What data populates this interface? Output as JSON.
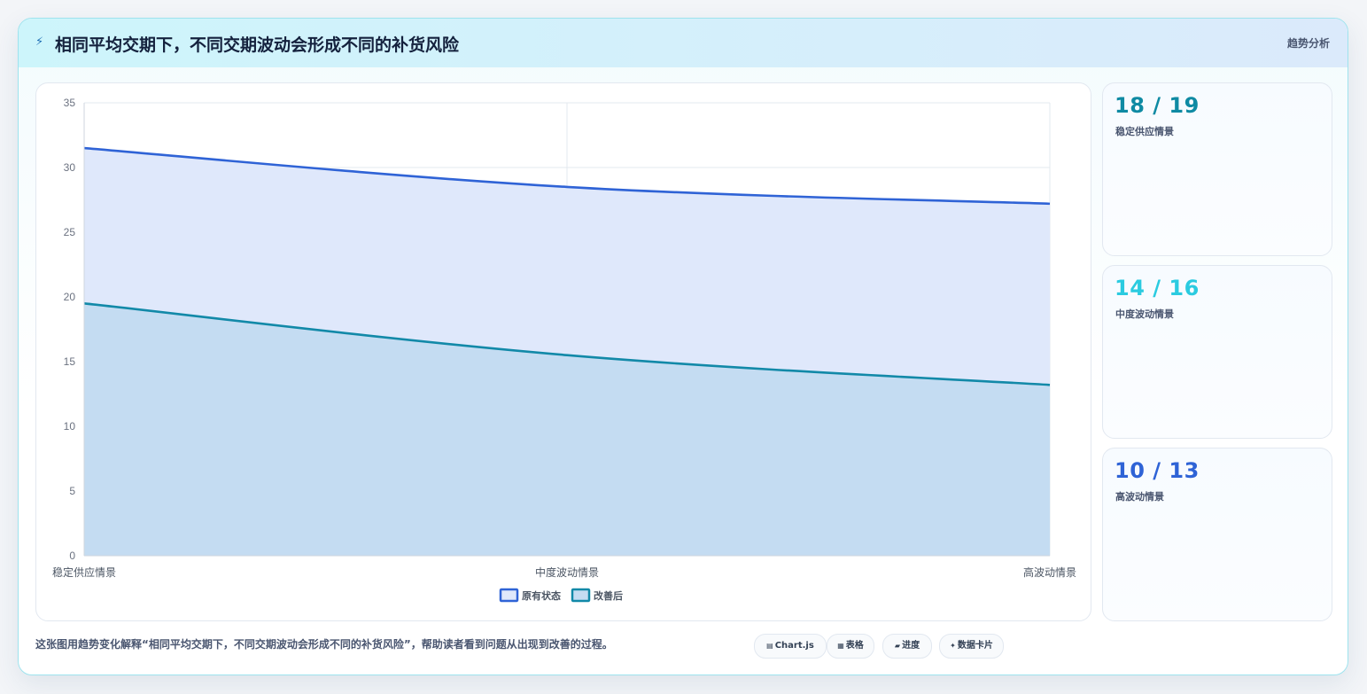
{
  "header": {
    "icon": "bolt-icon",
    "title": "相同平均交期下，不同交期波动会形成不同的补货风险",
    "tag": "趋势分析"
  },
  "colors": {
    "original": "#2f63d6",
    "original_fill": "#dfe8fb",
    "improved": "#1289a8",
    "improved_fill": "#c4dcf2",
    "card1": "#0f8aa3",
    "card2": "#2bcbe0",
    "card3": "#2f63d6"
  },
  "chart_data": {
    "type": "area",
    "categories": [
      "稳定供应情景",
      "中度波动情景",
      "高波动情景"
    ],
    "series": [
      {
        "name": "原有状态",
        "values": [
          31.5,
          28.5,
          27.2
        ]
      },
      {
        "name": "改善后",
        "values": [
          19.5,
          15.5,
          13.2
        ]
      }
    ],
    "ylim": [
      0,
      35
    ],
    "yticks": [
      0,
      5,
      10,
      15,
      20,
      25,
      30,
      35
    ],
    "grid": true,
    "legend": "bottom"
  },
  "stats": [
    {
      "value": "18 / 19",
      "label": "稳定供应情景"
    },
    {
      "value": "14 / 16",
      "label": "中度波动情景"
    },
    {
      "value": "10 / 13",
      "label": "高波动情景"
    }
  ],
  "footer": {
    "note": "这张图用趋势变化解释“相同平均交期下，不同交期波动会形成不同的补货风险”，帮助读者看到问题从出现到改善的过程。",
    "chips": [
      {
        "icon": "chart-icon",
        "glyph": "▤",
        "label": "Chart.js"
      },
      {
        "icon": "table-icon",
        "glyph": "▦",
        "label": "表格"
      },
      {
        "icon": "progress-icon",
        "glyph": "▰",
        "label": "进度"
      },
      {
        "icon": "spark-icon",
        "glyph": "✦",
        "label": "数据卡片"
      }
    ]
  }
}
